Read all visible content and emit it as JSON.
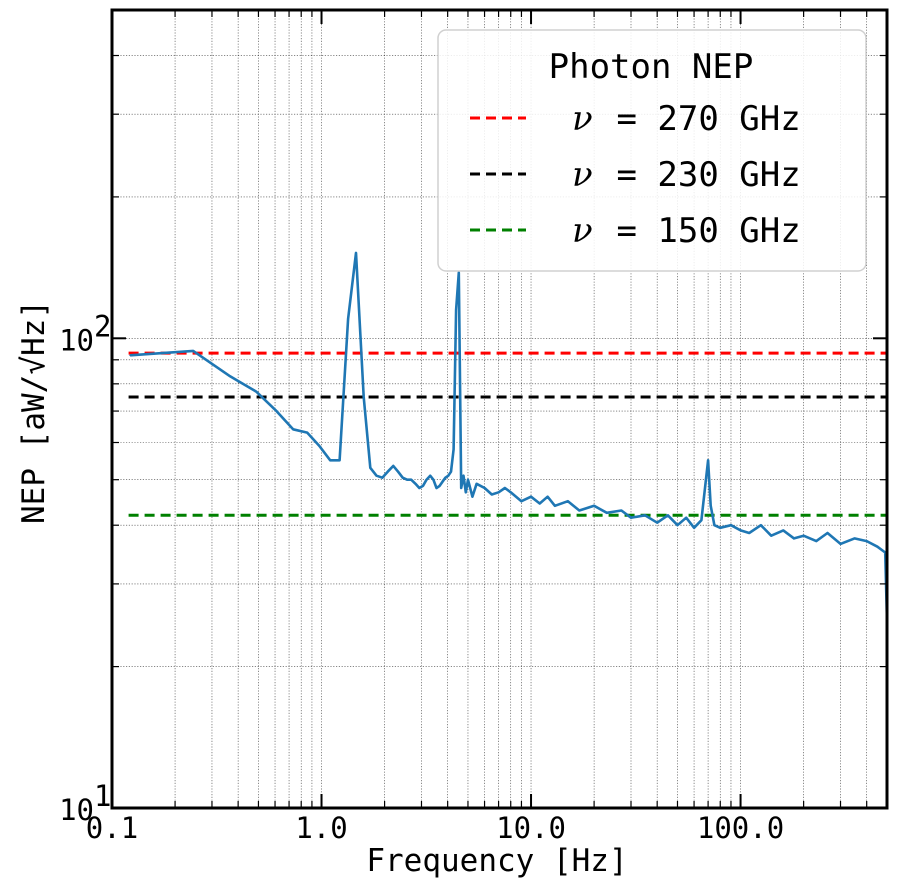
{
  "chart_data": {
    "type": "line",
    "xlabel": "Frequency [Hz]",
    "ylabel": "NEP [aW/√Hz]",
    "xscale": "log",
    "yscale": "log",
    "xlim": [
      0.1,
      500
    ],
    "ylim": [
      10,
      500
    ],
    "x_tick_labels": [
      "0.1",
      "1.0",
      "10.0",
      "100.0"
    ],
    "y_tick_labels": [
      "10",
      "10"
    ],
    "y_tick_exponents": [
      "1",
      "2"
    ],
    "grid": "on (major and minor, dotted)",
    "legend": {
      "title": "Photon NEP",
      "placement": "top-right",
      "symbol": "ν",
      "entries": [
        {
          "text": " = 270 GHz",
          "color": "#ff0000"
        },
        {
          "text": " = 230 GHz",
          "color": "#000000"
        },
        {
          "text": " = 150 GHz",
          "color": "#008000"
        }
      ]
    },
    "hlines": [
      {
        "y": 93,
        "color": "#ff0000",
        "style": "dashed"
      },
      {
        "y": 75,
        "color": "#000000",
        "style": "dashed"
      },
      {
        "y": 42,
        "color": "#008000",
        "style": "dashed"
      }
    ],
    "series": [
      {
        "color": "#1f77b4",
        "x": [
          0.122,
          0.244,
          0.366,
          0.488,
          0.61,
          0.732,
          0.854,
          0.976,
          1.1,
          1.22,
          1.34,
          1.46,
          1.59,
          1.71,
          1.83,
          1.95,
          2.07,
          2.2,
          2.32,
          2.44,
          2.56,
          2.68,
          2.81,
          2.93,
          3.05,
          3.17,
          3.3,
          3.42,
          3.54,
          3.66,
          3.78,
          3.9,
          4.03,
          4.15,
          4.27,
          4.39,
          4.52,
          4.64,
          4.76,
          4.88,
          5.0,
          5.25,
          5.5,
          6.0,
          6.5,
          7.0,
          7.5,
          8.0,
          9.0,
          10,
          11,
          12,
          13,
          15,
          17,
          20,
          23,
          27,
          30,
          35,
          40,
          45,
          50,
          55,
          60,
          65,
          70,
          72,
          75,
          80,
          90,
          100,
          110,
          125,
          140,
          160,
          180,
          200,
          230,
          260,
          300,
          350,
          400,
          450,
          490,
          500
        ],
        "y": [
          92,
          94,
          83,
          77,
          70,
          64,
          63,
          59,
          55,
          55,
          110,
          152,
          75,
          53,
          51,
          50.5,
          52,
          53.5,
          52,
          50.5,
          50,
          50,
          49,
          48,
          48.5,
          50,
          51,
          50,
          48,
          48.5,
          49.5,
          50.5,
          51,
          52,
          58,
          115,
          138,
          48,
          51,
          47,
          50,
          46,
          49,
          48,
          46.5,
          47,
          48,
          47,
          45,
          46,
          44.5,
          46,
          44,
          45,
          43,
          44,
          42.5,
          43,
          41.5,
          42,
          40.5,
          42,
          40,
          41.5,
          39.5,
          41,
          55,
          44,
          40,
          39.5,
          40,
          39,
          38.5,
          40,
          38,
          39,
          37.5,
          38,
          37,
          38.5,
          36.5,
          37.5,
          37,
          36,
          35,
          25
        ]
      }
    ]
  }
}
